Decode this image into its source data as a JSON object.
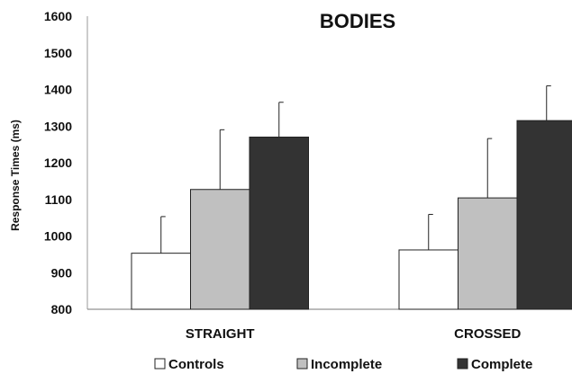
{
  "chart_data": {
    "type": "bar",
    "title": "BODIES",
    "xlabel": "",
    "ylabel": "Response Times (ms)",
    "ylim": [
      800,
      1600
    ],
    "yticks": [
      "800",
      "900",
      "1000",
      "1100",
      "1200",
      "1300",
      "1400",
      "1500",
      "1600"
    ],
    "categories": [
      "STRAIGHT",
      "CROSSED"
    ],
    "series": [
      {
        "name": "Controls",
        "color": "#ffffff",
        "values": [
          953,
          962
        ],
        "error": [
          100,
          97
        ]
      },
      {
        "name": "Incomplete",
        "color": "#c0c0c0",
        "values": [
          1127,
          1104
        ],
        "error": [
          163,
          162
        ]
      },
      {
        "name": "Complete",
        "color": "#333333",
        "values": [
          1270,
          1315
        ],
        "error": [
          95,
          95
        ]
      }
    ],
    "grid": false,
    "legend_position": "bottom"
  }
}
